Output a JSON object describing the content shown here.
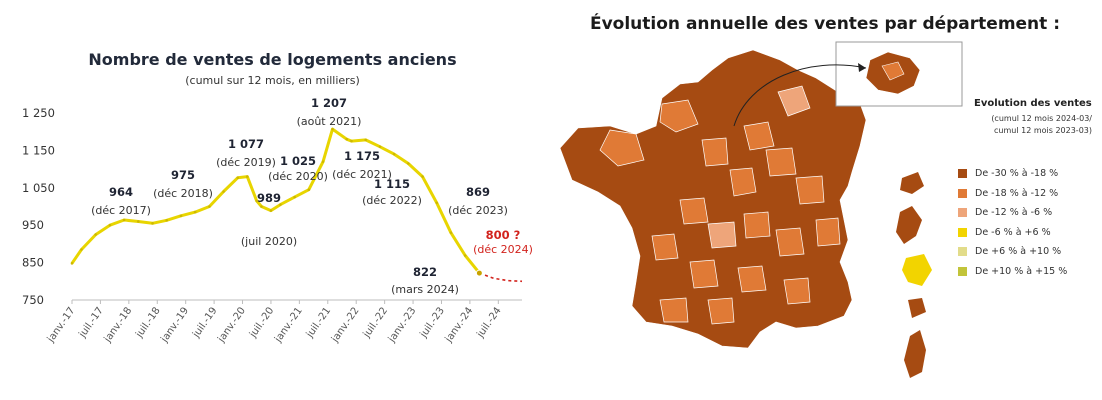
{
  "chart_data": [
    {
      "type": "line",
      "title": "Nombre de ventes de logements anciens",
      "subtitle": "(cumul sur 12 mois, en milliers)",
      "x_tick_labels": [
        "janv.-17",
        "juil.-17",
        "janv.-18",
        "juil.-18",
        "janv.-19",
        "juil.-19",
        "janv.-20",
        "juil.-20",
        "janv.-21",
        "juil.-21",
        "janv.-22",
        "juil.-22",
        "janv.-23",
        "juil.-23",
        "janv.-24",
        "juil.-24"
      ],
      "y_ticks": [
        "750",
        "850",
        "950",
        "1 050",
        "1 150",
        "1 250"
      ],
      "ylim": [
        750,
        1250
      ],
      "grid": false,
      "series": [
        {
          "x": [
            "2017-01",
            "2017-03",
            "2017-06",
            "2017-09",
            "2017-12",
            "2018-03",
            "2018-06",
            "2018-09",
            "2018-12",
            "2019-03",
            "2019-06",
            "2019-09",
            "2019-12",
            "2020-02",
            "2020-04",
            "2020-05",
            "2020-07",
            "2020-09",
            "2020-12",
            "2021-03",
            "2021-06",
            "2021-08",
            "2021-11",
            "2021-12",
            "2022-03",
            "2022-06",
            "2022-09",
            "2022-12",
            "2023-03",
            "2023-06",
            "2023-09",
            "2023-12",
            "2024-03"
          ],
          "values": [
            848,
            885,
            925,
            950,
            964,
            960,
            955,
            963,
            975,
            985,
            1000,
            1040,
            1077,
            1080,
            1015,
            1000,
            989,
            1005,
            1025,
            1045,
            1120,
            1207,
            1180,
            1175,
            1178,
            1160,
            1140,
            1115,
            1080,
            1010,
            930,
            869,
            822
          ]
        },
        {
          "style": "dashed",
          "color": "#d2231d",
          "x": [
            "2024-03",
            "2024-06",
            "2024-09",
            "2024-12"
          ],
          "values": [
            822,
            808,
            802,
            800
          ]
        }
      ],
      "annotations": [
        {
          "value": "964",
          "date": "(déc 2017)"
        },
        {
          "value": "975",
          "date": "(déc 2018)"
        },
        {
          "value": "1 077",
          "date": "(déc 2019)"
        },
        {
          "value": "989",
          "date": "(juil 2020)"
        },
        {
          "value": "1 025",
          "date": "(déc 2020)"
        },
        {
          "value": "1 207",
          "date": "(août 2021)"
        },
        {
          "value": "1 175",
          "date": "(déc 2021)"
        },
        {
          "value": "1 115",
          "date": "(déc 2022)"
        },
        {
          "value": "869",
          "date": "(déc 2023)"
        },
        {
          "value": "822",
          "date": "(mars 2024)"
        },
        {
          "value": "800 ?",
          "date": "(déc 2024)",
          "color": "#d2231d"
        }
      ]
    },
    {
      "type": "map",
      "title": "Évolution annuelle des ventes par département :",
      "legend": {
        "title": "Evolution des ventes",
        "subtitle_lines": [
          "(cumul 12 mois 2024-03/",
          "cumul 12 mois 2023-03)"
        ],
        "position": "right",
        "items": [
          {
            "label": "De -30 % à -18 %",
            "color": "#a64b12"
          },
          {
            "label": "De -18 % à -12 %",
            "color": "#e07a36"
          },
          {
            "label": "De -12 % à -6 %",
            "color": "#eea57a"
          },
          {
            "label": "De -6 % à +6 %",
            "color": "#f2d400"
          },
          {
            "label": "De +6 % à +10 %",
            "color": "#e2dc8a"
          },
          {
            "label": "De +10 % à +15 %",
            "color": "#c2c43a"
          }
        ]
      }
    }
  ]
}
